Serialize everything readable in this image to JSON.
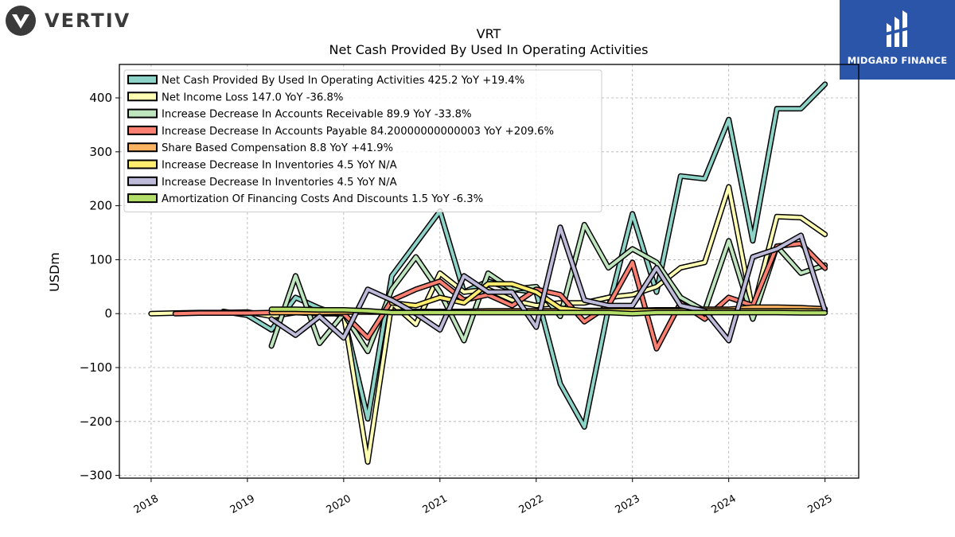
{
  "logos": {
    "left": {
      "text": "VERTIV"
    },
    "right": {
      "text": "MIDGARD FINANCE",
      "color": "#2a55a8"
    }
  },
  "chart_data": {
    "type": "line",
    "title": "VRT",
    "subtitle": "Net Cash Provided By Used In Operating Activities",
    "ylabel": "USDm",
    "xlabel": "",
    "ylim": [
      -305,
      462
    ],
    "xlim": [
      2017.67,
      2025.35
    ],
    "yticks": [
      400,
      300,
      200,
      100,
      0,
      -100,
      -200,
      -300
    ],
    "ytick_labels": [
      "400",
      "300",
      "200",
      "100",
      "0",
      "−100",
      "−200",
      "−300"
    ],
    "xticks": [
      2018,
      2019,
      2020,
      2021,
      2022,
      2023,
      2024,
      2025
    ],
    "xtick_labels": [
      "2018",
      "2019",
      "2020",
      "2021",
      "2022",
      "2023",
      "2024",
      "2025"
    ],
    "grid": true,
    "legend_position": "top-left",
    "series": [
      {
        "name": "Net Cash Provided By Used In Operating Activities",
        "legend_label": "Net Cash Provided By Used In Operating Activities  425.2 YoY +19.4%",
        "color": "#8dd3c7",
        "points": [
          [
            2018.75,
            4
          ],
          [
            2019.0,
            -3
          ],
          [
            2019.25,
            -30
          ],
          [
            2019.5,
            30
          ],
          [
            2019.75,
            10
          ],
          [
            2020.0,
            -5
          ],
          [
            2020.25,
            -195
          ],
          [
            2020.5,
            70
          ],
          [
            2020.75,
            130
          ],
          [
            2021.0,
            190
          ],
          [
            2021.25,
            40
          ],
          [
            2021.5,
            60
          ],
          [
            2021.75,
            45
          ],
          [
            2022.0,
            40
          ],
          [
            2022.25,
            -130
          ],
          [
            2022.5,
            -210
          ],
          [
            2022.75,
            10
          ],
          [
            2023.0,
            185
          ],
          [
            2023.25,
            40
          ],
          [
            2023.5,
            255
          ],
          [
            2023.75,
            250
          ],
          [
            2024.0,
            360
          ],
          [
            2024.25,
            135
          ],
          [
            2024.5,
            380
          ],
          [
            2024.75,
            380
          ],
          [
            2025.0,
            425.2
          ]
        ]
      },
      {
        "name": "Net Income Loss",
        "legend_label": "Net Income Loss  147.0 YoY -36.8%",
        "color": "#ffffb3",
        "points": [
          [
            2018.0,
            0
          ],
          [
            2018.25,
            1
          ],
          [
            2018.5,
            2
          ],
          [
            2018.75,
            2
          ],
          [
            2019.0,
            3
          ],
          [
            2019.25,
            -5
          ],
          [
            2019.5,
            2
          ],
          [
            2019.75,
            0
          ],
          [
            2020.0,
            0
          ],
          [
            2020.25,
            -275
          ],
          [
            2020.5,
            20
          ],
          [
            2020.75,
            -20
          ],
          [
            2021.0,
            75
          ],
          [
            2021.25,
            40
          ],
          [
            2021.5,
            45
          ],
          [
            2021.75,
            25
          ],
          [
            2022.0,
            15
          ],
          [
            2022.25,
            20
          ],
          [
            2022.5,
            20
          ],
          [
            2022.75,
            30
          ],
          [
            2023.0,
            35
          ],
          [
            2023.25,
            50
          ],
          [
            2023.5,
            85
          ],
          [
            2023.75,
            95
          ],
          [
            2024.0,
            235
          ],
          [
            2024.25,
            5
          ],
          [
            2024.5,
            180
          ],
          [
            2024.75,
            178
          ],
          [
            2025.0,
            147
          ]
        ]
      },
      {
        "name": "Increase Decrease In Accounts Receivable",
        "legend_label": "Increase Decrease In Accounts Receivable  89.9 YoY -33.8%",
        "color": "#bfe5bf",
        "points": [
          [
            2019.25,
            -60
          ],
          [
            2019.5,
            70
          ],
          [
            2019.75,
            -55
          ],
          [
            2020.0,
            0
          ],
          [
            2020.25,
            -70
          ],
          [
            2020.5,
            45
          ],
          [
            2020.75,
            105
          ],
          [
            2021.0,
            40
          ],
          [
            2021.25,
            -50
          ],
          [
            2021.5,
            75
          ],
          [
            2021.75,
            45
          ],
          [
            2022.0,
            50
          ],
          [
            2022.25,
            -5
          ],
          [
            2022.5,
            165
          ],
          [
            2022.75,
            85
          ],
          [
            2023.0,
            120
          ],
          [
            2023.25,
            95
          ],
          [
            2023.5,
            30
          ],
          [
            2023.75,
            5
          ],
          [
            2024.0,
            135
          ],
          [
            2024.25,
            -10
          ],
          [
            2024.5,
            125
          ],
          [
            2024.75,
            75
          ],
          [
            2025.0,
            89.9
          ]
        ]
      },
      {
        "name": "Increase Decrease In Accounts Payable",
        "legend_label": "Increase Decrease In Accounts Payable  84.20000000000003 YoY +209.6%",
        "color": "#fb8072",
        "points": [
          [
            2018.25,
            0
          ],
          [
            2018.5,
            1
          ],
          [
            2018.75,
            1
          ],
          [
            2019.0,
            1
          ],
          [
            2019.25,
            2
          ],
          [
            2019.5,
            3
          ],
          [
            2019.75,
            2
          ],
          [
            2020.0,
            0
          ],
          [
            2020.25,
            -45
          ],
          [
            2020.5,
            25
          ],
          [
            2020.75,
            45
          ],
          [
            2021.0,
            60
          ],
          [
            2021.25,
            25
          ],
          [
            2021.5,
            35
          ],
          [
            2021.75,
            15
          ],
          [
            2022.0,
            45
          ],
          [
            2022.25,
            35
          ],
          [
            2022.5,
            -15
          ],
          [
            2022.75,
            15
          ],
          [
            2023.0,
            95
          ],
          [
            2023.25,
            -65
          ],
          [
            2023.5,
            20
          ],
          [
            2023.75,
            -10
          ],
          [
            2024.0,
            30
          ],
          [
            2024.25,
            15
          ],
          [
            2024.5,
            125
          ],
          [
            2024.75,
            130
          ],
          [
            2025.0,
            84.2
          ]
        ]
      },
      {
        "name": "Share Based Compensation",
        "legend_label": "Share Based Compensation  8.8 YoY +41.9%",
        "color": "#fdb462",
        "points": [
          [
            2019.25,
            2
          ],
          [
            2019.5,
            2
          ],
          [
            2019.75,
            2
          ],
          [
            2020.0,
            3
          ],
          [
            2020.25,
            3
          ],
          [
            2020.5,
            3
          ],
          [
            2020.75,
            4
          ],
          [
            2021.0,
            4
          ],
          [
            2021.25,
            4
          ],
          [
            2021.5,
            5
          ],
          [
            2021.75,
            5
          ],
          [
            2022.0,
            5
          ],
          [
            2022.25,
            5
          ],
          [
            2022.5,
            6
          ],
          [
            2022.75,
            6
          ],
          [
            2023.0,
            6
          ],
          [
            2023.25,
            7
          ],
          [
            2023.5,
            7
          ],
          [
            2023.75,
            8
          ],
          [
            2024.0,
            8
          ],
          [
            2024.25,
            12
          ],
          [
            2024.5,
            12
          ],
          [
            2024.75,
            11
          ],
          [
            2025.0,
            8.8
          ]
        ]
      },
      {
        "name": "Increase Decrease In Inventories",
        "legend_label": "Increase Decrease In Inventories  4.5 YoY N/A",
        "color": "#ffed6f",
        "points": [
          [
            2020.5,
            20
          ],
          [
            2020.75,
            15
          ],
          [
            2021.0,
            30
          ],
          [
            2021.25,
            20
          ],
          [
            2021.5,
            55
          ],
          [
            2021.75,
            55
          ],
          [
            2022.0,
            40
          ],
          [
            2022.25,
            10
          ],
          [
            2022.5,
            5
          ],
          [
            2022.75,
            5
          ],
          [
            2023.0,
            5
          ],
          [
            2023.25,
            5
          ],
          [
            2023.5,
            5
          ],
          [
            2023.75,
            5
          ],
          [
            2024.0,
            5
          ],
          [
            2024.25,
            5
          ],
          [
            2024.5,
            5
          ],
          [
            2024.75,
            5
          ],
          [
            2025.0,
            4.5
          ]
        ]
      },
      {
        "name": "Increase Decrease In Inventories",
        "legend_label": "Increase Decrease In Inventories  4.5 YoY N/A",
        "color": "#bebada",
        "points": [
          [
            2019.25,
            -10
          ],
          [
            2019.5,
            -40
          ],
          [
            2019.75,
            -5
          ],
          [
            2020.0,
            -45
          ],
          [
            2020.25,
            45
          ],
          [
            2020.5,
            25
          ],
          [
            2020.75,
            0
          ],
          [
            2021.0,
            -30
          ],
          [
            2021.25,
            70
          ],
          [
            2021.5,
            40
          ],
          [
            2021.75,
            40
          ],
          [
            2022.0,
            -25
          ],
          [
            2022.25,
            160
          ],
          [
            2022.5,
            25
          ],
          [
            2022.75,
            15
          ],
          [
            2023.0,
            15
          ],
          [
            2023.25,
            85
          ],
          [
            2023.5,
            15
          ],
          [
            2023.75,
            5
          ],
          [
            2024.0,
            -50
          ],
          [
            2024.25,
            105
          ],
          [
            2024.5,
            120
          ],
          [
            2024.75,
            145
          ],
          [
            2025.0,
            4.5
          ]
        ]
      },
      {
        "name": "Amortization Of Financing Costs And Discounts",
        "legend_label": "Amortization Of Financing Costs And Discounts  1.5 YoY -6.3%",
        "color": "#b3de69",
        "points": [
          [
            2019.25,
            8
          ],
          [
            2019.5,
            8
          ],
          [
            2019.75,
            7
          ],
          [
            2020.0,
            7
          ],
          [
            2020.25,
            5
          ],
          [
            2020.5,
            2
          ],
          [
            2020.75,
            2
          ],
          [
            2021.0,
            2
          ],
          [
            2021.25,
            2
          ],
          [
            2021.5,
            2
          ],
          [
            2021.75,
            2
          ],
          [
            2022.0,
            2
          ],
          [
            2022.25,
            2
          ],
          [
            2022.5,
            2
          ],
          [
            2022.75,
            2
          ],
          [
            2023.0,
            0
          ],
          [
            2023.25,
            2
          ],
          [
            2023.5,
            2
          ],
          [
            2023.75,
            2
          ],
          [
            2024.0,
            2
          ],
          [
            2024.25,
            2
          ],
          [
            2024.5,
            2
          ],
          [
            2024.75,
            1.5
          ],
          [
            2025.0,
            1.5
          ]
        ]
      }
    ]
  }
}
